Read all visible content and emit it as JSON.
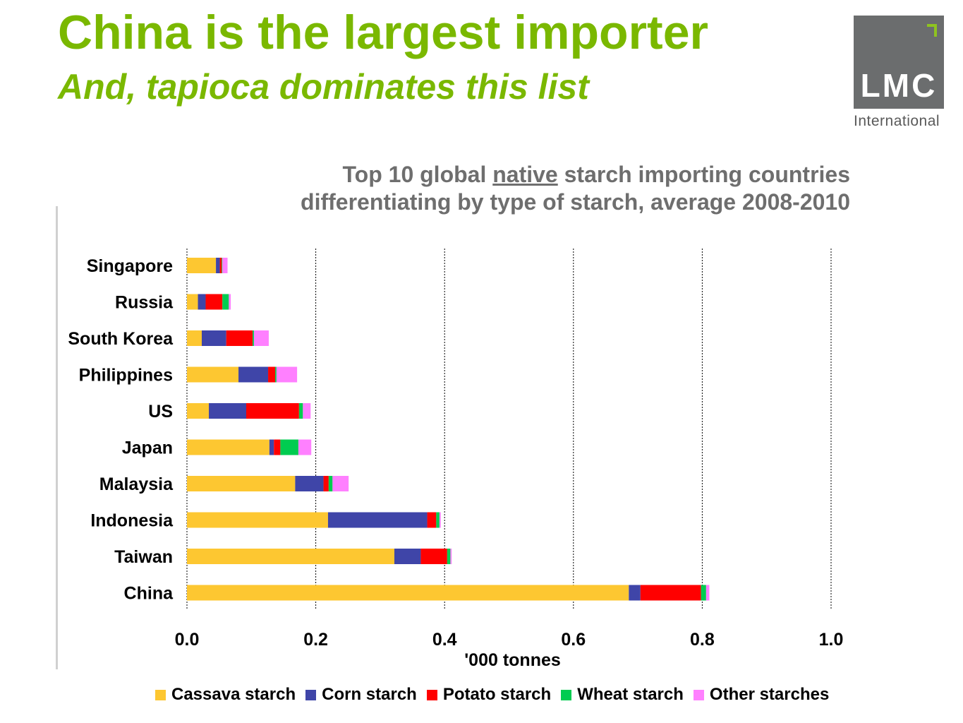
{
  "header": {
    "title": "China is the largest importer",
    "subtitle": "And, tapioca dominates this list"
  },
  "logo": {
    "text": "LMC",
    "caption": "International",
    "accent_color": "#8fc31f",
    "bg_color": "#6b6d6e"
  },
  "chart_title": {
    "line1_before": "Top 10 global ",
    "line1_underlined": "native",
    "line1_after": " starch importing countries",
    "line2": "differentiating by type of starch, average 2008-2010"
  },
  "chart_data": {
    "type": "bar",
    "orientation": "horizontal",
    "stacked": true,
    "categories": [
      "Singapore",
      "Russia",
      "South Korea",
      "Philippines",
      "US",
      "Japan",
      "Malaysia",
      "Indonesia",
      "Taiwan",
      "China"
    ],
    "series": [
      {
        "name": "Cassava starch",
        "color": "#fdc731",
        "values": [
          0.045,
          0.017,
          0.023,
          0.08,
          0.034,
          0.128,
          0.168,
          0.219,
          0.322,
          0.686
        ]
      },
      {
        "name": "Corn starch",
        "color": "#3f45a8",
        "values": [
          0.006,
          0.012,
          0.038,
          0.046,
          0.058,
          0.007,
          0.044,
          0.154,
          0.041,
          0.018
        ]
      },
      {
        "name": "Potato starch",
        "color": "#ff0000",
        "values": [
          0.003,
          0.026,
          0.041,
          0.011,
          0.082,
          0.01,
          0.008,
          0.014,
          0.041,
          0.094
        ]
      },
      {
        "name": "Wheat starch",
        "color": "#00cc50",
        "values": [
          0.001,
          0.01,
          0.002,
          0.002,
          0.006,
          0.028,
          0.006,
          0.005,
          0.005,
          0.008
        ]
      },
      {
        "name": "Other starches",
        "color": "#ff80ff",
        "values": [
          0.008,
          0.003,
          0.023,
          0.032,
          0.012,
          0.02,
          0.025,
          0.002,
          0.002,
          0.005
        ]
      }
    ],
    "xlabel": "'000 tonnes",
    "ylabel": "",
    "xlim": [
      0.0,
      1.0
    ],
    "xticks": [
      0.0,
      0.2,
      0.4,
      0.6,
      0.8,
      1.0
    ],
    "xtick_labels": [
      "0.0",
      "0.2",
      "0.4",
      "0.6",
      "0.8",
      "1.0"
    ],
    "grid": "vertical dotted",
    "legend_position": "bottom"
  }
}
